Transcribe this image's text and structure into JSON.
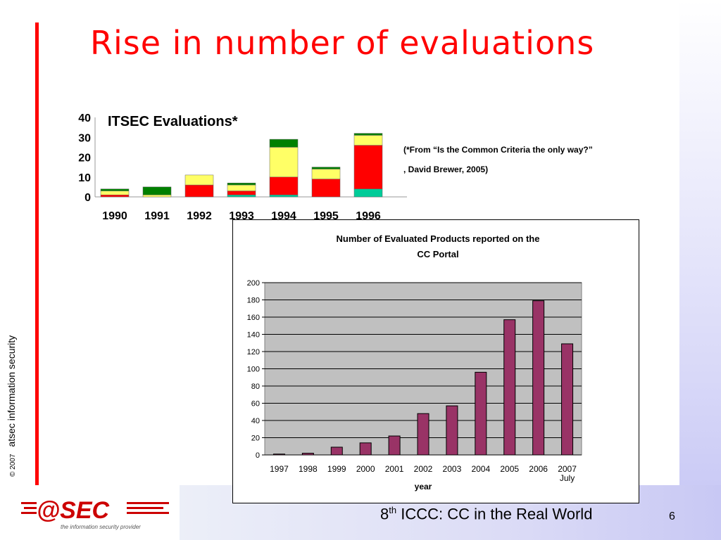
{
  "slide": {
    "title": "Rise in number of evaluations",
    "copyright_year": "© 2007",
    "copyright_org": "atsec information security",
    "footer_prefix": "8",
    "footer_sup": "th",
    "footer_rest": " ICCC: CC in the Real World",
    "page_number": "6",
    "logo_text": "@SEC",
    "logo_tagline": "the information security provider",
    "citation_line1": "(*From “Is the Common Criteria the only way?”",
    "citation_line2": ", David Brewer, 2005)"
  },
  "colors": {
    "title": "#ff0000",
    "red_bar": "#ff0000",
    "cc_bar": "#993366",
    "cc_plot_bg": "#c0c0c0",
    "itsec_green": "#008000",
    "itsec_yellow": "#ffff66",
    "itsec_red": "#ff0000",
    "itsec_teal": "#00cc99"
  },
  "chart_data": [
    {
      "type": "bar",
      "stacked": true,
      "title": "ITSEC Evaluations*",
      "categories": [
        "1990",
        "1991",
        "1992",
        "1993",
        "1994",
        "1995",
        "1996"
      ],
      "yticks": [
        "0",
        "10",
        "20",
        "30",
        "40"
      ],
      "ylim": [
        0,
        40
      ],
      "series": [
        {
          "color": "#00cc99",
          "values": [
            0,
            0,
            0,
            1,
            1,
            0,
            4
          ]
        },
        {
          "color": "#ff0000",
          "values": [
            1,
            0,
            6,
            2,
            9,
            9,
            22
          ]
        },
        {
          "color": "#ffff66",
          "values": [
            2,
            1,
            5,
            3,
            15,
            5,
            5
          ]
        },
        {
          "color": "#008000",
          "values": [
            1,
            4,
            0,
            1,
            4,
            1,
            1
          ]
        }
      ],
      "grid": false,
      "legend": "none"
    },
    {
      "type": "bar",
      "title_line1": "Number of Evaluated Products reported on the",
      "title_line2": "CC Portal",
      "xlabel": "year",
      "categories": [
        "1997",
        "1998",
        "1999",
        "2000",
        "2001",
        "2002",
        "2003",
        "2004",
        "2005",
        "2006",
        "2007"
      ],
      "category_note": {
        "index": 10,
        "text": "July"
      },
      "values": [
        1,
        2,
        9,
        14,
        22,
        48,
        57,
        96,
        157,
        179,
        129
      ],
      "yticks": [
        "0",
        "20",
        "40",
        "60",
        "80",
        "100",
        "120",
        "140",
        "160",
        "180",
        "200"
      ],
      "ylim": [
        0,
        200
      ],
      "grid": true,
      "legend": "none"
    }
  ]
}
